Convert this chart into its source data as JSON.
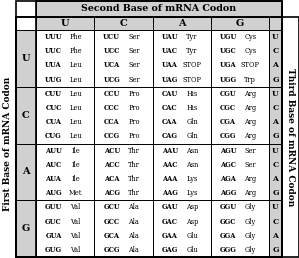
{
  "title": "Second Base of mRNA Codon",
  "left_label": "First Base of mRNA Codon",
  "right_label": "Third Base of mRNA Codon",
  "second_bases": [
    "U",
    "C",
    "A",
    "G"
  ],
  "first_bases": [
    "U",
    "C",
    "A",
    "G"
  ],
  "third_bases": [
    "U",
    "C",
    "A",
    "G"
  ],
  "cells": {
    "UU": [
      [
        "UUU",
        "Phe"
      ],
      [
        "UUC",
        "Phe"
      ],
      [
        "UUA",
        "Leu"
      ],
      [
        "UUG",
        "Leu"
      ]
    ],
    "UC": [
      [
        "UCU",
        "Ser"
      ],
      [
        "UCC",
        "Ser"
      ],
      [
        "UCA",
        "Ser"
      ],
      [
        "UCG",
        "Ser"
      ]
    ],
    "UA": [
      [
        "UAU",
        "Tyr"
      ],
      [
        "UAC",
        "Tyr"
      ],
      [
        "UAA",
        "STOP"
      ],
      [
        "UAG",
        "STOP"
      ]
    ],
    "UG": [
      [
        "UGU",
        "Cys"
      ],
      [
        "UGC",
        "Cys"
      ],
      [
        "UGA",
        "STOP"
      ],
      [
        "UGG",
        "Trp"
      ]
    ],
    "CU": [
      [
        "CUU",
        "Leu"
      ],
      [
        "CUC",
        "Leu"
      ],
      [
        "CUA",
        "Leu"
      ],
      [
        "CUG",
        "Leu"
      ]
    ],
    "CC": [
      [
        "CCU",
        "Pro"
      ],
      [
        "CCC",
        "Pro"
      ],
      [
        "CCA",
        "Pro"
      ],
      [
        "CCG",
        "Pro"
      ]
    ],
    "CA": [
      [
        "CAU",
        "His"
      ],
      [
        "CAC",
        "His"
      ],
      [
        "CAA",
        "Gln"
      ],
      [
        "CAG",
        "Gln"
      ]
    ],
    "CG": [
      [
        "CGU",
        "Arg"
      ],
      [
        "CGC",
        "Arg"
      ],
      [
        "CGA",
        "Arg"
      ],
      [
        "CGG",
        "Arg"
      ]
    ],
    "AU": [
      [
        "AUU",
        "Ile"
      ],
      [
        "AUC",
        "Ile"
      ],
      [
        "AUA",
        "Ile"
      ],
      [
        "AUG",
        "Met"
      ]
    ],
    "AC": [
      [
        "ACU",
        "Thr"
      ],
      [
        "ACC",
        "Thr"
      ],
      [
        "ACA",
        "Thr"
      ],
      [
        "ACG",
        "Thr"
      ]
    ],
    "AA": [
      [
        "AAU",
        "Asn"
      ],
      [
        "AAC",
        "Asn"
      ],
      [
        "AAA",
        "Lys"
      ],
      [
        "AAG",
        "Lys"
      ]
    ],
    "AG": [
      [
        "AGU",
        "Ser"
      ],
      [
        "AGC",
        "Ser"
      ],
      [
        "AGA",
        "Arg"
      ],
      [
        "AGG",
        "Arg"
      ]
    ],
    "GU": [
      [
        "GUU",
        "Val"
      ],
      [
        "GUC",
        "Val"
      ],
      [
        "GUA",
        "Val"
      ],
      [
        "GUG",
        "Val"
      ]
    ],
    "GC": [
      [
        "GCU",
        "Ala"
      ],
      [
        "GCC",
        "Ala"
      ],
      [
        "GCA",
        "Ala"
      ],
      [
        "GCG",
        "Ala"
      ]
    ],
    "GA": [
      [
        "GAU",
        "Asp"
      ],
      [
        "GAC",
        "Asp"
      ],
      [
        "GAA",
        "Glu"
      ],
      [
        "GAG",
        "Glu"
      ]
    ],
    "GG": [
      [
        "GGU",
        "Gly"
      ],
      [
        "GGC",
        "Gly"
      ],
      [
        "GGA",
        "Gly"
      ],
      [
        "GGG",
        "Gly"
      ]
    ]
  },
  "bg_color": "#ffffff",
  "lw": 0.7,
  "title_fontsize": 6.8,
  "header_fontsize": 7.0,
  "cell_fontsize": 4.8,
  "label_fontsize": 6.5,
  "third_base_fontsize": 5.5
}
